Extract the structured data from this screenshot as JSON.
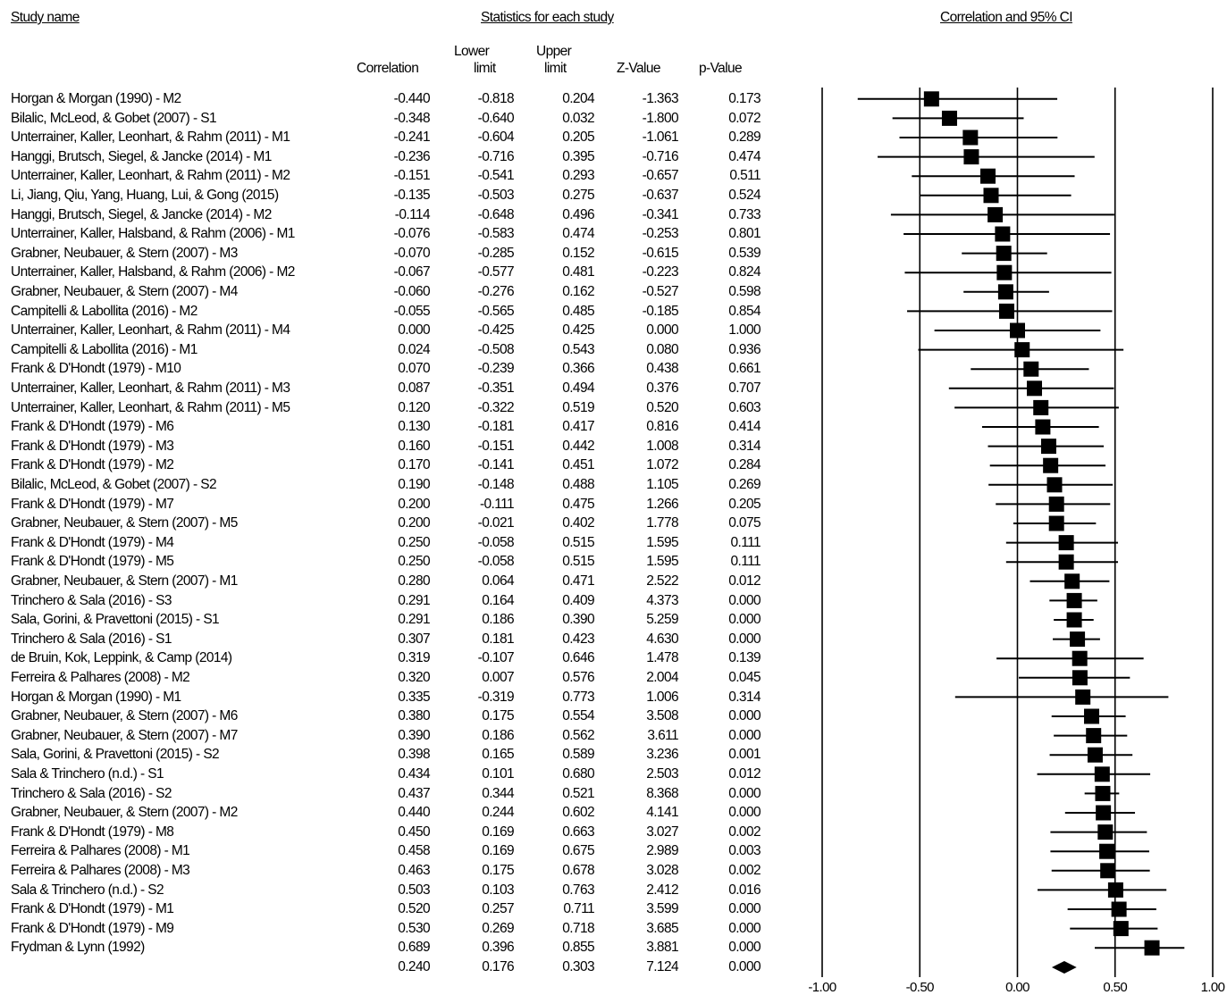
{
  "headers": {
    "study_name": "Study name",
    "statistics": "Statistics for each study",
    "correlation_ci": "Correlation and 95% CI"
  },
  "columns": {
    "correlation": "Correlation",
    "lower_1": "Lower",
    "lower_2": "limit",
    "upper_1": "Upper",
    "upper_2": "limit",
    "z": "Z-Value",
    "p": "p-Value"
  },
  "rows": [
    {
      "name": "Horgan & Morgan (1990) - M2",
      "corr": "-0.440",
      "lower": "-0.818",
      "upper": "0.204",
      "z": "-1.363",
      "p": "0.173"
    },
    {
      "name": "Bilalic, McLeod, & Gobet (2007) - S1",
      "corr": "-0.348",
      "lower": "-0.640",
      "upper": "0.032",
      "z": "-1.800",
      "p": "0.072"
    },
    {
      "name": "Unterrainer, Kaller, Leonhart, & Rahm (2011) - M1",
      "corr": "-0.241",
      "lower": "-0.604",
      "upper": "0.205",
      "z": "-1.061",
      "p": "0.289"
    },
    {
      "name": "Hanggi, Brutsch, Siegel, & Jancke (2014) - M1",
      "corr": "-0.236",
      "lower": "-0.716",
      "upper": "0.395",
      "z": "-0.716",
      "p": "0.474"
    },
    {
      "name": "Unterrainer, Kaller, Leonhart, & Rahm (2011) - M2",
      "corr": "-0.151",
      "lower": "-0.541",
      "upper": "0.293",
      "z": "-0.657",
      "p": "0.511"
    },
    {
      "name": "Li, Jiang, Qiu, Yang, Huang, Lui, & Gong (2015)",
      "corr": "-0.135",
      "lower": "-0.503",
      "upper": "0.275",
      "z": "-0.637",
      "p": "0.524"
    },
    {
      "name": "Hanggi, Brutsch, Siegel, & Jancke (2014) - M2",
      "corr": "-0.114",
      "lower": "-0.648",
      "upper": "0.496",
      "z": "-0.341",
      "p": "0.733"
    },
    {
      "name": "Unterrainer, Kaller, Halsband, & Rahm (2006) - M1",
      "corr": "-0.076",
      "lower": "-0.583",
      "upper": "0.474",
      "z": "-0.253",
      "p": "0.801"
    },
    {
      "name": "Grabner, Neubauer, & Stern (2007) - M3",
      "corr": "-0.070",
      "lower": "-0.285",
      "upper": "0.152",
      "z": "-0.615",
      "p": "0.539"
    },
    {
      "name": "Unterrainer, Kaller, Halsband, & Rahm (2006) - M2",
      "corr": "-0.067",
      "lower": "-0.577",
      "upper": "0.481",
      "z": "-0.223",
      "p": "0.824"
    },
    {
      "name": "Grabner, Neubauer, & Stern (2007) - M4",
      "corr": "-0.060",
      "lower": "-0.276",
      "upper": "0.162",
      "z": "-0.527",
      "p": "0.598"
    },
    {
      "name": "Campitelli & Labollita (2016) - M2",
      "corr": "-0.055",
      "lower": "-0.565",
      "upper": "0.485",
      "z": "-0.185",
      "p": "0.854"
    },
    {
      "name": "Unterrainer, Kaller, Leonhart, & Rahm (2011) - M4",
      "corr": "0.000",
      "lower": "-0.425",
      "upper": "0.425",
      "z": "0.000",
      "p": "1.000"
    },
    {
      "name": "Campitelli & Labollita (2016) - M1",
      "corr": "0.024",
      "lower": "-0.508",
      "upper": "0.543",
      "z": "0.080",
      "p": "0.936"
    },
    {
      "name": "Frank & D'Hondt (1979) - M10",
      "corr": "0.070",
      "lower": "-0.239",
      "upper": "0.366",
      "z": "0.438",
      "p": "0.661"
    },
    {
      "name": "Unterrainer, Kaller, Leonhart, & Rahm (2011) - M3",
      "corr": "0.087",
      "lower": "-0.351",
      "upper": "0.494",
      "z": "0.376",
      "p": "0.707"
    },
    {
      "name": "Unterrainer, Kaller, Leonhart, & Rahm (2011) - M5",
      "corr": "0.120",
      "lower": "-0.322",
      "upper": "0.519",
      "z": "0.520",
      "p": "0.603"
    },
    {
      "name": "Frank & D'Hondt (1979) - M6",
      "corr": "0.130",
      "lower": "-0.181",
      "upper": "0.417",
      "z": "0.816",
      "p": "0.414"
    },
    {
      "name": "Frank & D'Hondt (1979) - M3",
      "corr": "0.160",
      "lower": "-0.151",
      "upper": "0.442",
      "z": "1.008",
      "p": "0.314"
    },
    {
      "name": "Frank & D'Hondt (1979) - M2",
      "corr": "0.170",
      "lower": "-0.141",
      "upper": "0.451",
      "z": "1.072",
      "p": "0.284"
    },
    {
      "name": "Bilalic, McLeod, & Gobet (2007) - S2",
      "corr": "0.190",
      "lower": "-0.148",
      "upper": "0.488",
      "z": "1.105",
      "p": "0.269"
    },
    {
      "name": "Frank & D'Hondt (1979) - M7",
      "corr": "0.200",
      "lower": "-0.111",
      "upper": "0.475",
      "z": "1.266",
      "p": "0.205"
    },
    {
      "name": "Grabner, Neubauer, & Stern (2007) - M5",
      "corr": "0.200",
      "lower": "-0.021",
      "upper": "0.402",
      "z": "1.778",
      "p": "0.075"
    },
    {
      "name": "Frank & D'Hondt (1979) - M4",
      "corr": "0.250",
      "lower": "-0.058",
      "upper": "0.515",
      "z": "1.595",
      "p": "0.111"
    },
    {
      "name": "Frank & D'Hondt (1979) - M5",
      "corr": "0.250",
      "lower": "-0.058",
      "upper": "0.515",
      "z": "1.595",
      "p": "0.111"
    },
    {
      "name": "Grabner, Neubauer, & Stern (2007) - M1",
      "corr": "0.280",
      "lower": "0.064",
      "upper": "0.471",
      "z": "2.522",
      "p": "0.012"
    },
    {
      "name": "Trinchero & Sala (2016) - S3",
      "corr": "0.291",
      "lower": "0.164",
      "upper": "0.409",
      "z": "4.373",
      "p": "0.000"
    },
    {
      "name": "Sala, Gorini, & Pravettoni (2015) - S1",
      "corr": "0.291",
      "lower": "0.186",
      "upper": "0.390",
      "z": "5.259",
      "p": "0.000"
    },
    {
      "name": "Trinchero & Sala (2016) - S1",
      "corr": "0.307",
      "lower": "0.181",
      "upper": "0.423",
      "z": "4.630",
      "p": "0.000"
    },
    {
      "name": "de Bruin, Kok, Leppink, & Camp (2014)",
      "corr": "0.319",
      "lower": "-0.107",
      "upper": "0.646",
      "z": "1.478",
      "p": "0.139"
    },
    {
      "name": "Ferreira & Palhares (2008) - M2",
      "corr": "0.320",
      "lower": "0.007",
      "upper": "0.576",
      "z": "2.004",
      "p": "0.045"
    },
    {
      "name": "Horgan & Morgan (1990) - M1",
      "corr": "0.335",
      "lower": "-0.319",
      "upper": "0.773",
      "z": "1.006",
      "p": "0.314"
    },
    {
      "name": "Grabner, Neubauer, & Stern (2007) - M6",
      "corr": "0.380",
      "lower": "0.175",
      "upper": "0.554",
      "z": "3.508",
      "p": "0.000"
    },
    {
      "name": "Grabner, Neubauer, & Stern (2007) - M7",
      "corr": "0.390",
      "lower": "0.186",
      "upper": "0.562",
      "z": "3.611",
      "p": "0.000"
    },
    {
      "name": "Sala, Gorini, & Pravettoni (2015) - S2",
      "corr": "0.398",
      "lower": "0.165",
      "upper": "0.589",
      "z": "3.236",
      "p": "0.001"
    },
    {
      "name": "Sala & Trinchero (n.d.) - S1",
      "corr": "0.434",
      "lower": "0.101",
      "upper": "0.680",
      "z": "2.503",
      "p": "0.012"
    },
    {
      "name": "Trinchero & Sala (2016) - S2",
      "corr": "0.437",
      "lower": "0.344",
      "upper": "0.521",
      "z": "8.368",
      "p": "0.000"
    },
    {
      "name": "Grabner, Neubauer, & Stern (2007) - M2",
      "corr": "0.440",
      "lower": "0.244",
      "upper": "0.602",
      "z": "4.141",
      "p": "0.000"
    },
    {
      "name": "Frank & D'Hondt (1979) - M8",
      "corr": "0.450",
      "lower": "0.169",
      "upper": "0.663",
      "z": "3.027",
      "p": "0.002"
    },
    {
      "name": "Ferreira & Palhares (2008) - M1",
      "corr": "0.458",
      "lower": "0.169",
      "upper": "0.675",
      "z": "2.989",
      "p": "0.003"
    },
    {
      "name": "Ferreira & Palhares (2008) - M3",
      "corr": "0.463",
      "lower": "0.175",
      "upper": "0.678",
      "z": "3.028",
      "p": "0.002"
    },
    {
      "name": "Sala & Trinchero (n.d.) - S2",
      "corr": "0.503",
      "lower": "0.103",
      "upper": "0.763",
      "z": "2.412",
      "p": "0.016"
    },
    {
      "name": "Frank & D'Hondt (1979) - M1",
      "corr": "0.520",
      "lower": "0.257",
      "upper": "0.711",
      "z": "3.599",
      "p": "0.000"
    },
    {
      "name": "Frank & D'Hondt (1979) - M9",
      "corr": "0.530",
      "lower": "0.269",
      "upper": "0.718",
      "z": "3.685",
      "p": "0.000"
    },
    {
      "name": "Frydman & Lynn (1992)",
      "corr": "0.689",
      "lower": "0.396",
      "upper": "0.855",
      "z": "3.881",
      "p": "0.000"
    }
  ],
  "summary": {
    "name": "",
    "corr": "0.240",
    "lower": "0.176",
    "upper": "0.303",
    "z": "7.124",
    "p": "0.000"
  },
  "chart_data": {
    "type": "scatter",
    "subtype": "forest-plot",
    "title": "Correlation and 95% CI",
    "xlim": [
      -1.0,
      1.0
    ],
    "x_ticks": [
      "-1.00",
      "-0.50",
      "0.00",
      "0.50",
      "1.00"
    ],
    "x_tick_values": [
      -1.0,
      -0.5,
      0.0,
      0.5,
      1.0
    ],
    "estimates": [
      -0.44,
      -0.348,
      -0.241,
      -0.236,
      -0.151,
      -0.135,
      -0.114,
      -0.076,
      -0.07,
      -0.067,
      -0.06,
      -0.055,
      0.0,
      0.024,
      0.07,
      0.087,
      0.12,
      0.13,
      0.16,
      0.17,
      0.19,
      0.2,
      0.2,
      0.25,
      0.25,
      0.28,
      0.291,
      0.291,
      0.307,
      0.319,
      0.32,
      0.335,
      0.38,
      0.39,
      0.398,
      0.434,
      0.437,
      0.44,
      0.45,
      0.458,
      0.463,
      0.503,
      0.52,
      0.53,
      0.689
    ],
    "lower": [
      -0.818,
      -0.64,
      -0.604,
      -0.716,
      -0.541,
      -0.503,
      -0.648,
      -0.583,
      -0.285,
      -0.577,
      -0.276,
      -0.565,
      -0.425,
      -0.508,
      -0.239,
      -0.351,
      -0.322,
      -0.181,
      -0.151,
      -0.141,
      -0.148,
      -0.111,
      -0.021,
      -0.058,
      -0.058,
      0.064,
      0.164,
      0.186,
      0.181,
      -0.107,
      0.007,
      -0.319,
      0.175,
      0.186,
      0.165,
      0.101,
      0.344,
      0.244,
      0.169,
      0.169,
      0.175,
      0.103,
      0.257,
      0.269,
      0.396
    ],
    "upper": [
      0.204,
      0.032,
      0.205,
      0.395,
      0.293,
      0.275,
      0.496,
      0.474,
      0.152,
      0.481,
      0.162,
      0.485,
      0.425,
      0.543,
      0.366,
      0.494,
      0.519,
      0.417,
      0.442,
      0.451,
      0.488,
      0.475,
      0.402,
      0.515,
      0.515,
      0.471,
      0.409,
      0.39,
      0.423,
      0.646,
      0.576,
      0.773,
      0.554,
      0.562,
      0.589,
      0.68,
      0.521,
      0.602,
      0.663,
      0.675,
      0.678,
      0.763,
      0.711,
      0.718,
      0.855
    ],
    "summary": {
      "estimate": 0.24,
      "lower": 0.176,
      "upper": 0.303
    },
    "marker_color": "#000000"
  }
}
